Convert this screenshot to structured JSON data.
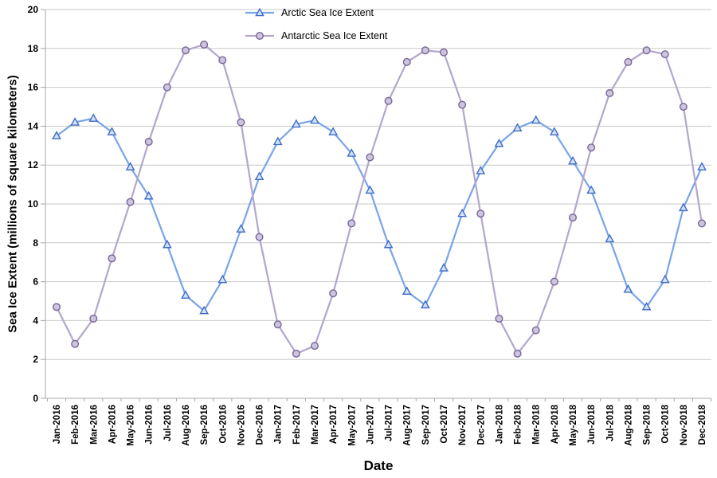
{
  "chart_data": {
    "type": "line",
    "title": "",
    "xlabel": "Date",
    "ylabel": "Sea Ice Extent (millions of square kilometers)",
    "ylim": [
      0,
      20
    ],
    "ytick_step": 2,
    "grid": true,
    "legend_position": "top-center",
    "categories": [
      "Jan-2016",
      "Feb-2016",
      "Mar-2016",
      "Apr-2016",
      "May-2016",
      "Jun-2016",
      "Jul-2016",
      "Aug-2016",
      "Sep-2016",
      "Oct-2016",
      "Nov-2016",
      "Dec-2016",
      "Jan-2017",
      "Feb-2017",
      "Mar-2017",
      "Apr-2017",
      "May-2017",
      "Jun-2017",
      "Jul-2017",
      "Aug-2017",
      "Sep-2017",
      "Oct-2017",
      "Nov-2017",
      "Dec-2017",
      "Jan-2018",
      "Feb-2018",
      "Mar-2018",
      "Apr-2018",
      "May-2018",
      "Jun-2018",
      "Jul-2018",
      "Aug-2018",
      "Sep-2018",
      "Oct-2018",
      "Nov-2018",
      "Dec-2018"
    ],
    "series": [
      {
        "id": "arctic",
        "name": "Arctic Sea Ice Extent",
        "marker": "triangle",
        "line_color": "#7BA5E9",
        "marker_stroke": "#3E6CC8",
        "marker_fill": "#D4E3F8",
        "values": [
          13.5,
          14.2,
          14.4,
          13.7,
          11.9,
          10.4,
          7.9,
          5.3,
          4.5,
          6.1,
          8.7,
          11.4,
          13.2,
          14.1,
          14.3,
          13.7,
          12.6,
          10.7,
          7.9,
          5.5,
          4.8,
          6.7,
          9.5,
          11.7,
          13.1,
          13.9,
          14.3,
          13.7,
          12.2,
          10.7,
          8.2,
          5.6,
          4.7,
          6.1,
          9.8,
          11.9
        ]
      },
      {
        "id": "antarctic",
        "name": "Antarctic Sea Ice Extent",
        "marker": "circle",
        "line_color": "#B4A7CD",
        "marker_stroke": "#77659B",
        "marker_fill": "#CDC5DB",
        "values": [
          4.7,
          2.8,
          4.1,
          7.2,
          10.1,
          13.2,
          16.0,
          17.9,
          18.2,
          17.4,
          14.2,
          8.3,
          3.8,
          2.3,
          2.7,
          5.4,
          9.0,
          12.4,
          15.3,
          17.3,
          17.9,
          17.8,
          15.1,
          9.5,
          4.1,
          2.3,
          3.5,
          6.0,
          9.3,
          12.9,
          15.7,
          17.3,
          17.9,
          17.7,
          15.0,
          9.0
        ]
      }
    ],
    "colors": {
      "gridline": "#c9c9c9",
      "axis": "#a8a8a8",
      "text": "#000000"
    }
  }
}
